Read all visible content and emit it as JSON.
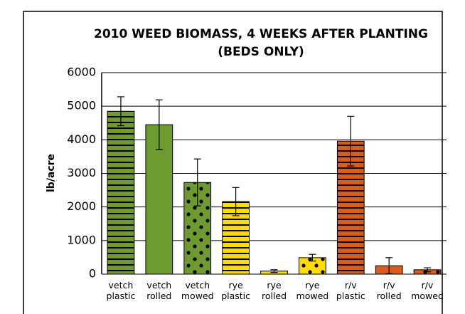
{
  "chart_data": {
    "type": "bar",
    "title": "2010 WEED BIOMASS, 4 WEEKS AFTER PLANTING",
    "subtitle": "(BEDS ONLY)",
    "y_label": "lb/acre",
    "categories": [
      "vetch plastic",
      "vetch rolled",
      "vetch mowed",
      "rye plastic",
      "rye rolled",
      "rye mowed",
      "r/v plastic",
      "r/v rolled",
      "r/v mowed"
    ],
    "values": [
      4850,
      4450,
      2730,
      2160,
      90,
      490,
      3960,
      250,
      130
    ],
    "errors": [
      430,
      740,
      700,
      420,
      40,
      100,
      740,
      240,
      60
    ],
    "colors": [
      "#6f9a30",
      "#6f9a30",
      "#6f9a30",
      "#ffdd00",
      "#ffdd00",
      "#ffdd00",
      "#dd5a1e",
      "#dd5a1e",
      "#dd5a1e"
    ],
    "patterns": [
      "stripes",
      "none",
      "dots",
      "stripes",
      "none",
      "dots",
      "stripes",
      "none",
      "dots"
    ],
    "ylim": [
      0,
      6000
    ],
    "yticks": [
      0,
      1000,
      2000,
      3000,
      4000,
      5000,
      6000
    ],
    "grid": true
  }
}
